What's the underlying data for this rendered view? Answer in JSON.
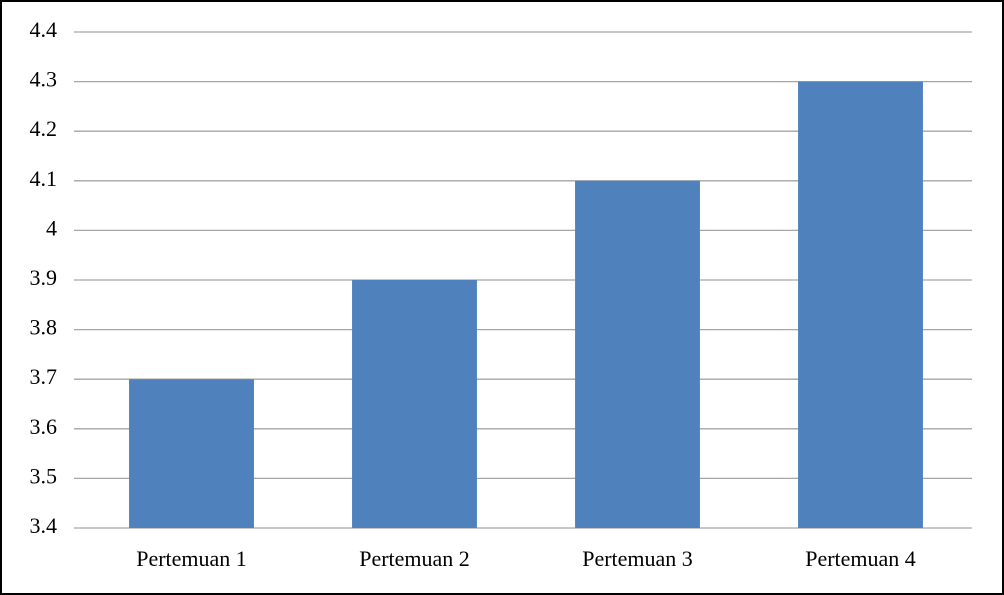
{
  "chart_data": {
    "type": "bar",
    "categories": [
      "Pertemuan 1",
      "Pertemuan 2",
      "Pertemuan 3",
      "Pertemuan 4"
    ],
    "values": [
      3.7,
      3.9,
      4.1,
      4.3
    ],
    "color": "#4f81bd",
    "ylim": [
      3.4,
      4.4
    ],
    "yticks": [
      3.4,
      3.5,
      3.6,
      3.7,
      3.8,
      3.9,
      4,
      4.1,
      4.2,
      4.3,
      4.4
    ],
    "grid": true
  }
}
